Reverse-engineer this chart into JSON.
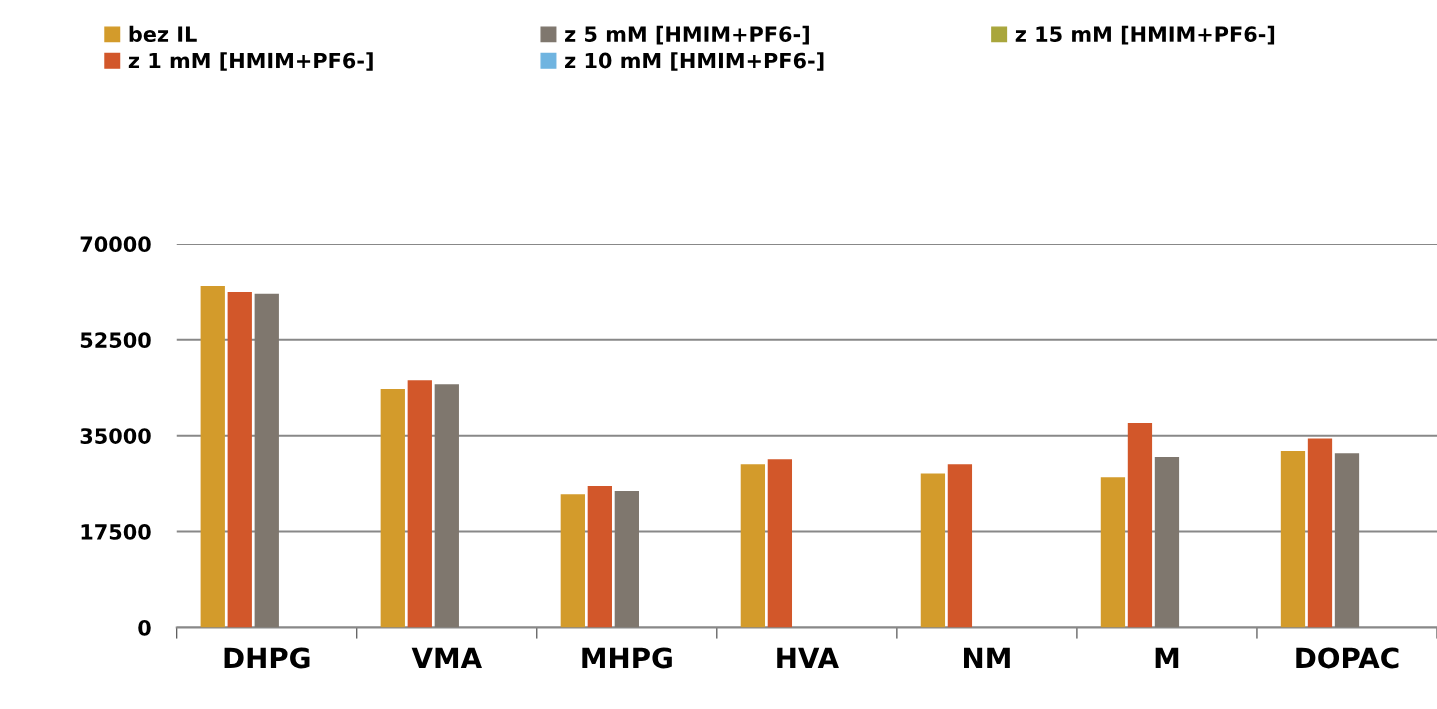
{
  "chart_data": {
    "type": "bar",
    "categories": [
      "DHPG",
      "VMA",
      "MHPG",
      "HVA",
      "NM",
      "M",
      "DOPAC"
    ],
    "series": [
      {
        "name": "bez IL",
        "color": "#d39b2b",
        "values": [
          62300,
          43500,
          24300,
          29800,
          28100,
          27400,
          32200
        ]
      },
      {
        "name": "z 1 mM [HMIM+PF6-]",
        "color": "#d2572a",
        "values": [
          61200,
          45100,
          25800,
          30700,
          29800,
          37300,
          34500
        ]
      },
      {
        "name": "z 5 mM [HMIM+PF6-]",
        "color": "#7f776e",
        "values": [
          60900,
          44400,
          24900,
          null,
          null,
          31100,
          31800
        ]
      },
      {
        "name": "z 10 mM [HMIM+PF6-]",
        "color": "#6fb4e0",
        "values": [
          null,
          null,
          null,
          null,
          null,
          null,
          null
        ]
      },
      {
        "name": "z 15 mM [HMIM+PF6-]",
        "color": "#a9a63c",
        "values": [
          null,
          null,
          null,
          null,
          null,
          null,
          null
        ]
      }
    ],
    "ylim": [
      0,
      70000
    ],
    "yticks": [
      0,
      17500,
      35000,
      52500,
      70000
    ],
    "grid": "y",
    "legend": "top"
  }
}
